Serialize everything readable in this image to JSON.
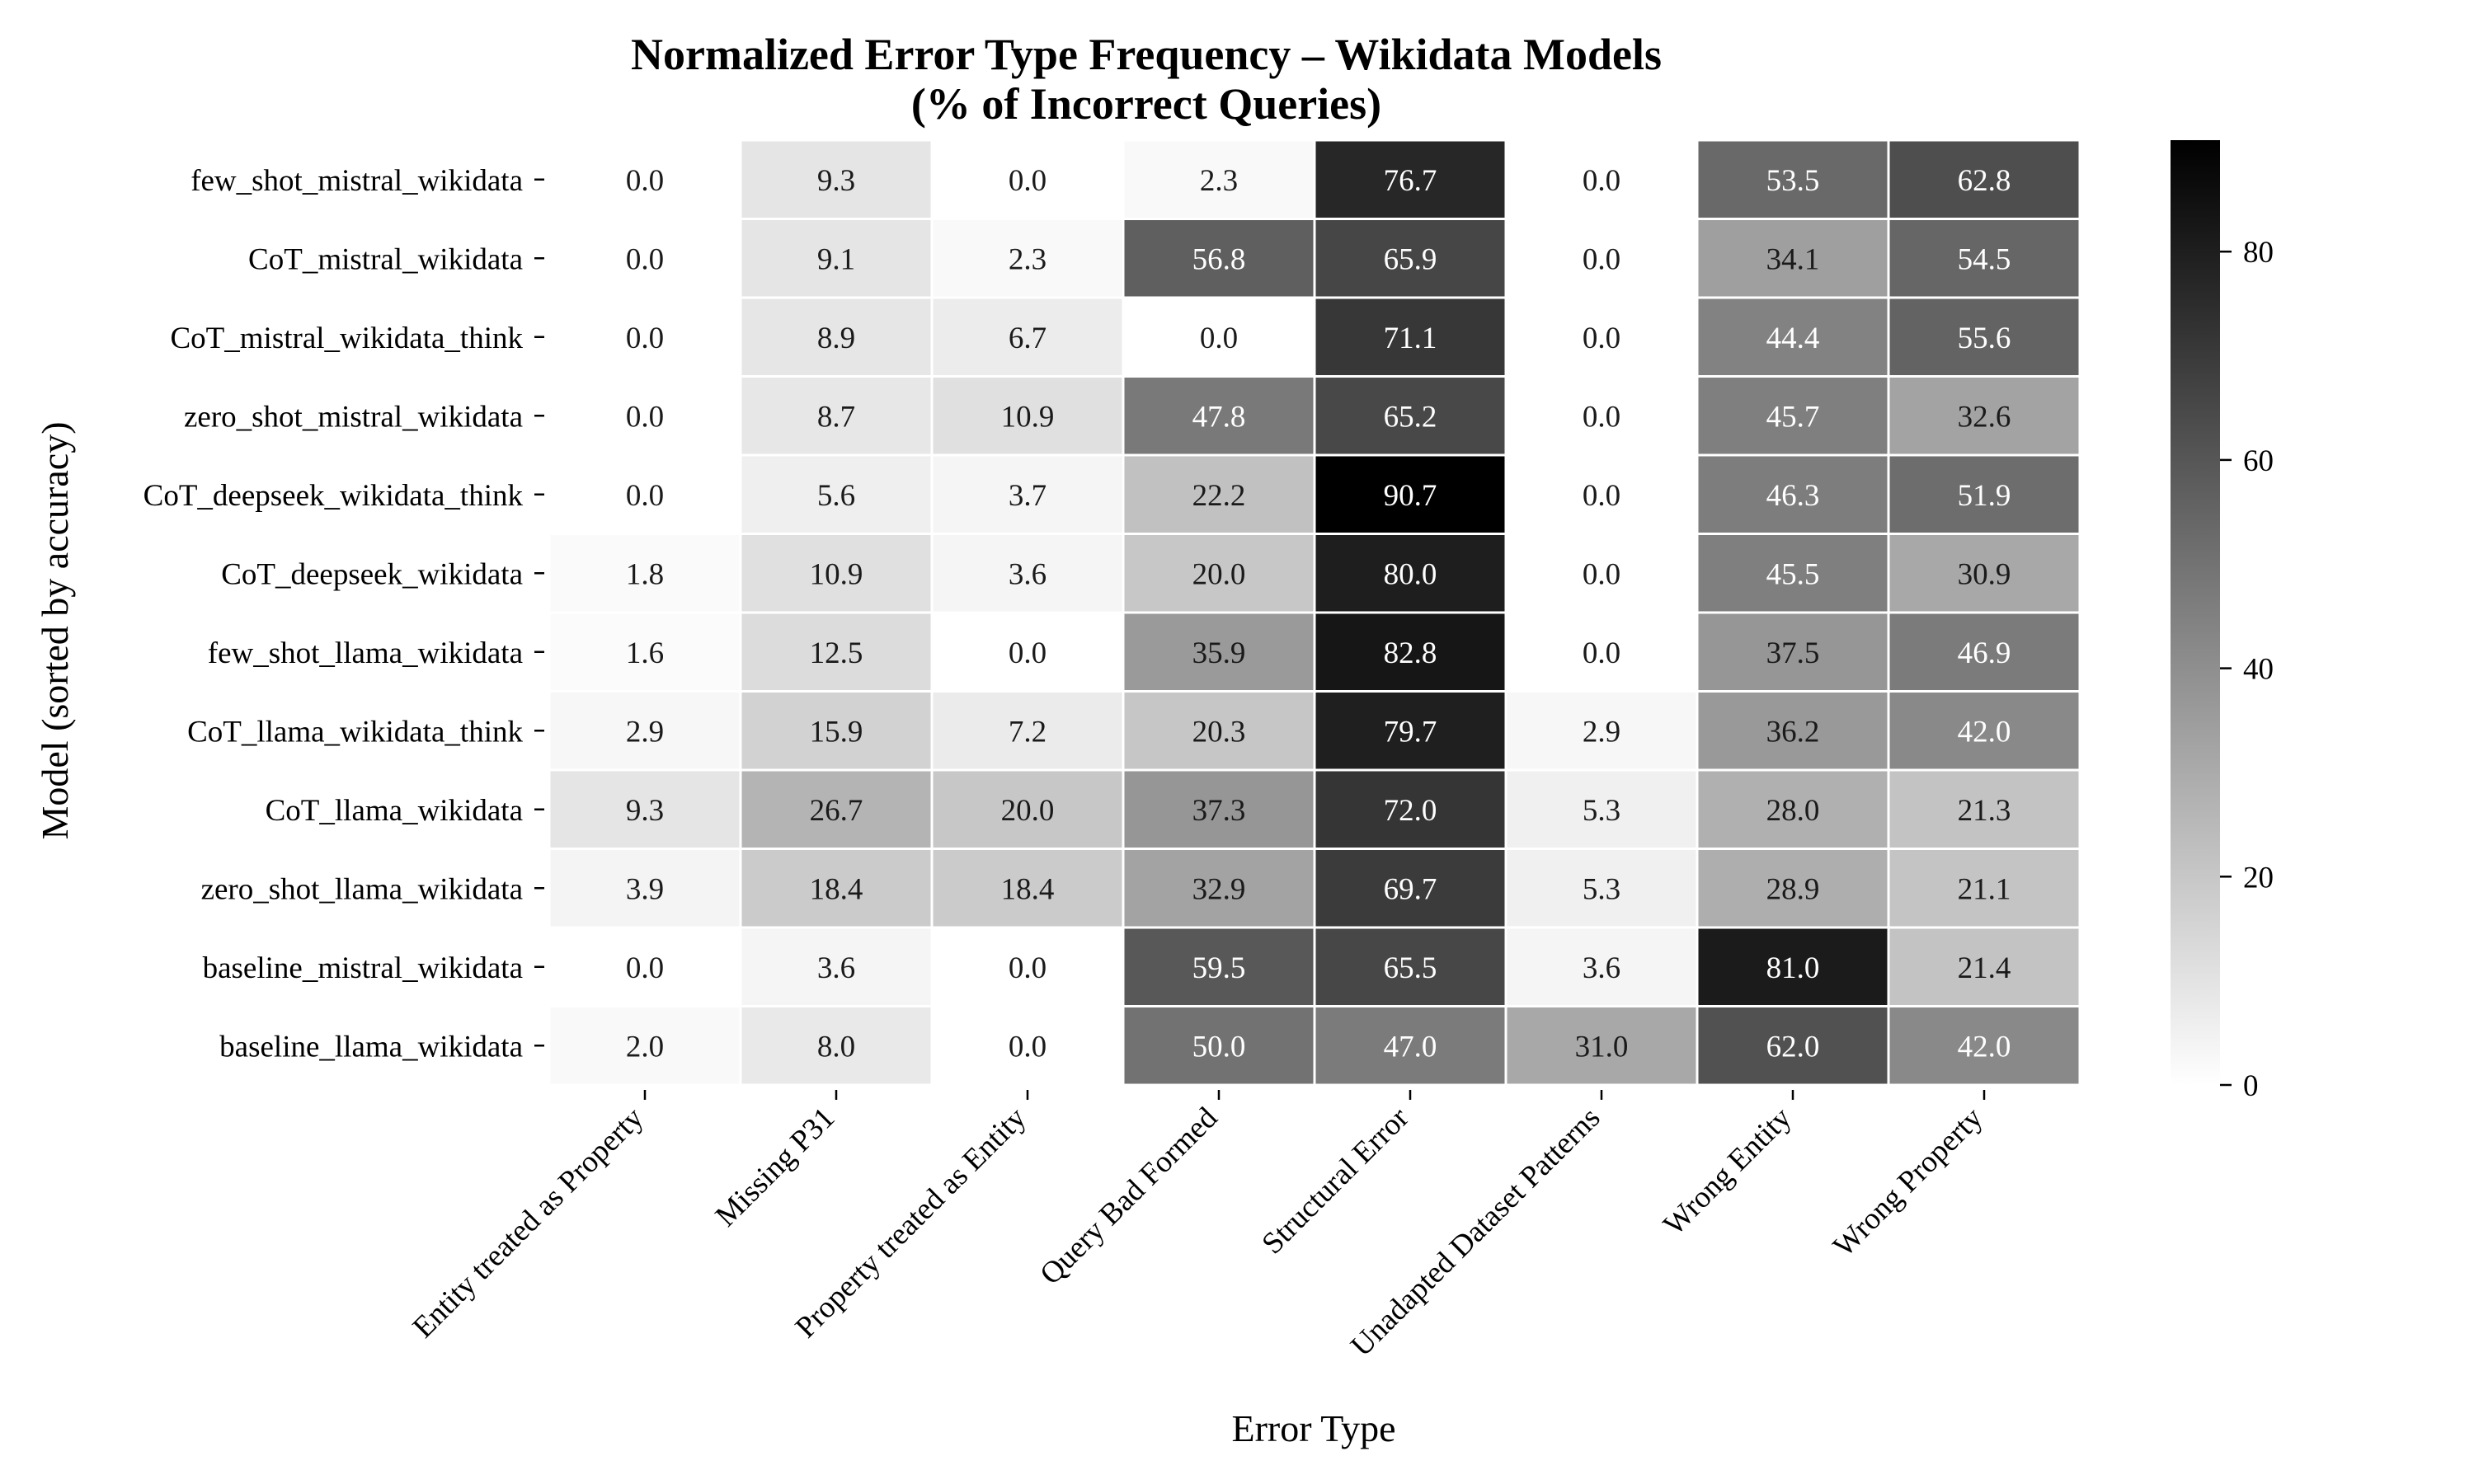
{
  "chart_data": {
    "type": "heatmap",
    "title": "Normalized Error Type Frequency – Wikidata Models",
    "subtitle": "(% of Incorrect Queries)",
    "xlabel": "Error Type",
    "ylabel": "Model (sorted by accuracy)",
    "columns": [
      "Entity treated as Property",
      "Missing P31",
      "Property treated as Entity",
      "Query Bad Formed",
      "Structural Error",
      "Unadapted Dataset Patterns",
      "Wrong Entity",
      "Wrong Property"
    ],
    "rows": [
      "few_shot_mistral_wikidata",
      "CoT_mistral_wikidata",
      "CoT_mistral_wikidata_think",
      "zero_shot_mistral_wikidata",
      "CoT_deepseek_wikidata_think",
      "CoT_deepseek_wikidata",
      "few_shot_llama_wikidata",
      "CoT_llama_wikidata_think",
      "CoT_llama_wikidata",
      "zero_shot_llama_wikidata",
      "baseline_mistral_wikidata",
      "baseline_llama_wikidata"
    ],
    "values": [
      [
        0.0,
        9.3,
        0.0,
        2.3,
        76.7,
        0.0,
        53.5,
        62.8
      ],
      [
        0.0,
        9.1,
        2.3,
        56.8,
        65.9,
        0.0,
        34.1,
        54.5
      ],
      [
        0.0,
        8.9,
        6.7,
        0.0,
        71.1,
        0.0,
        44.4,
        55.6
      ],
      [
        0.0,
        8.7,
        10.9,
        47.8,
        65.2,
        0.0,
        45.7,
        32.6
      ],
      [
        0.0,
        5.6,
        3.7,
        22.2,
        90.7,
        0.0,
        46.3,
        51.9
      ],
      [
        1.8,
        10.9,
        3.6,
        20.0,
        80.0,
        0.0,
        45.5,
        30.9
      ],
      [
        1.6,
        12.5,
        0.0,
        35.9,
        82.8,
        0.0,
        37.5,
        46.9
      ],
      [
        2.9,
        15.9,
        7.2,
        20.3,
        79.7,
        2.9,
        36.2,
        42.0
      ],
      [
        9.3,
        26.7,
        20.0,
        37.3,
        72.0,
        5.3,
        28.0,
        21.3
      ],
      [
        3.9,
        18.4,
        18.4,
        32.9,
        69.7,
        5.3,
        28.9,
        21.1
      ],
      [
        0.0,
        3.6,
        0.0,
        59.5,
        65.5,
        3.6,
        81.0,
        21.4
      ],
      [
        2.0,
        8.0,
        0.0,
        50.0,
        47.0,
        31.0,
        62.0,
        42.0
      ]
    ],
    "colorbar": {
      "min": 0,
      "max": 90.7,
      "ticks": [
        "0",
        "20",
        "40",
        "60",
        "80"
      ],
      "low_color": "#ffffff",
      "high_color": "#000000"
    }
  }
}
